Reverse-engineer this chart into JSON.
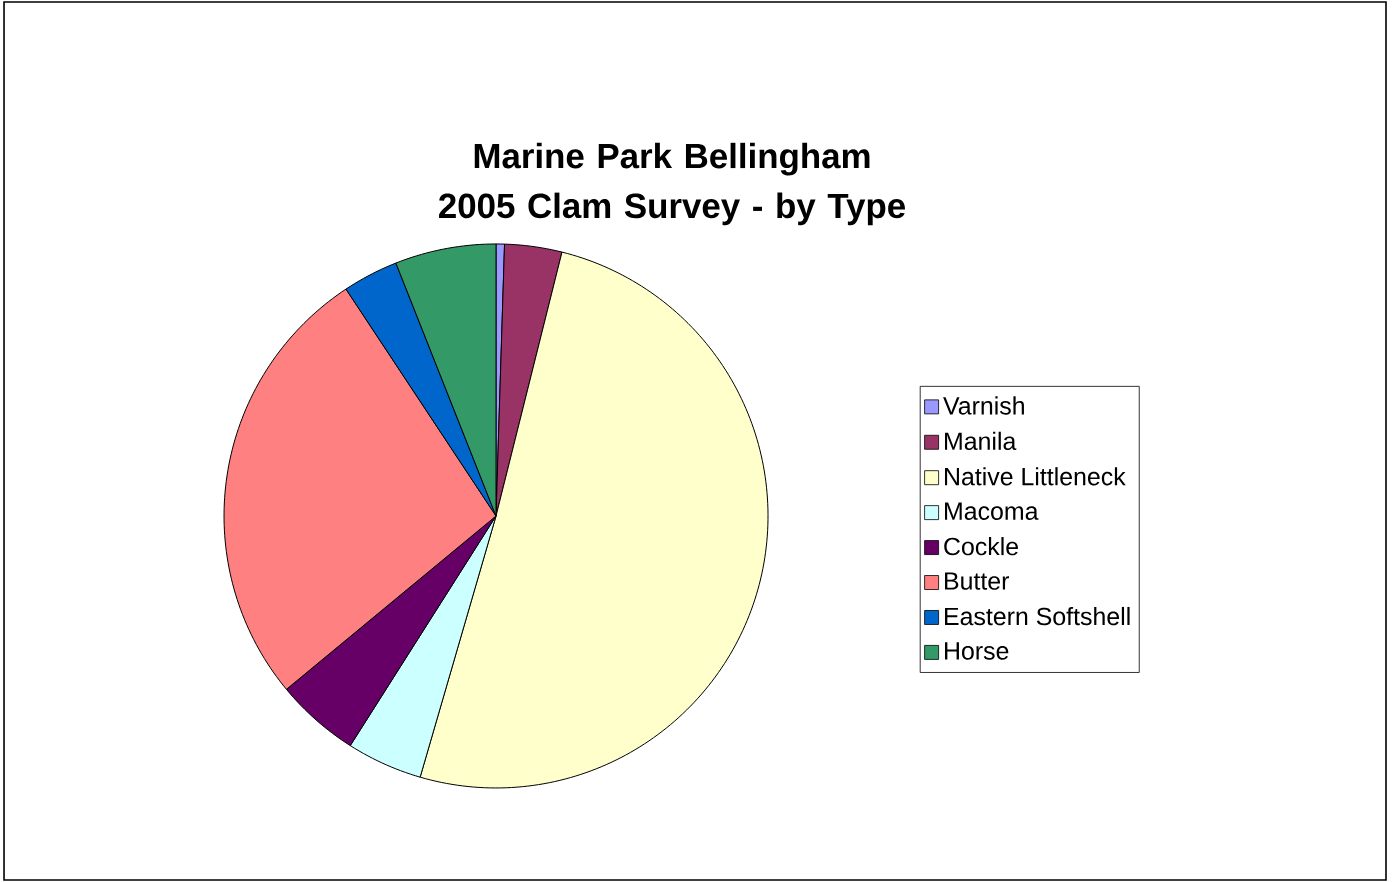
{
  "chart_data": {
    "type": "pie",
    "title": "Marine Park Bellingham 2005 Clam Survey - by Type",
    "categories": [
      "Varnish",
      "Manila",
      "Native Littleneck",
      "Macoma",
      "Cockle",
      "Butter",
      "Eastern Softshell",
      "Horse"
    ],
    "values": [
      0.5,
      3.4,
      50.6,
      4.5,
      5,
      26.7,
      3.3,
      6
    ],
    "colors": [
      "#9999ff",
      "#993366",
      "#ffffcc",
      "#ccffff",
      "#660066",
      "#ff8080",
      "#0066cc",
      "#339966"
    ],
    "legend": "right"
  }
}
